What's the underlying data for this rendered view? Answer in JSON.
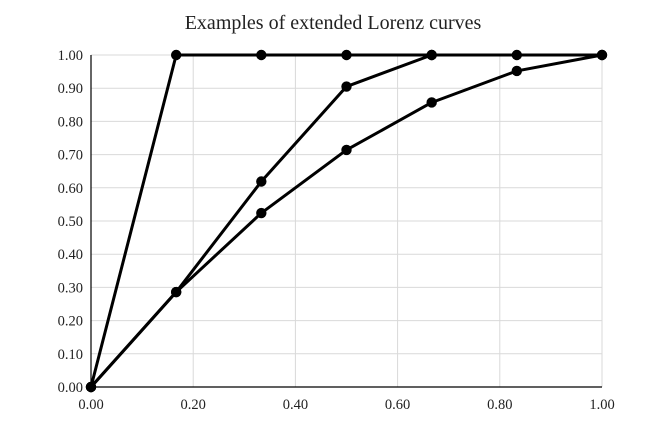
{
  "chart_data": {
    "type": "scatter",
    "title": "Examples of extended Lorenz curves",
    "xlabel": "",
    "ylabel": "",
    "xlim": [
      0,
      1
    ],
    "ylim": [
      0,
      1
    ],
    "grid": true,
    "legend": "none",
    "line_color": "#000000",
    "grid_color": "#d9d9d9",
    "x_ticks": [
      "0.00",
      "0.20",
      "0.40",
      "0.60",
      "0.80",
      "1.00"
    ],
    "y_ticks": [
      "0.00",
      "0.10",
      "0.20",
      "0.30",
      "0.40",
      "0.50",
      "0.60",
      "0.70",
      "0.80",
      "0.90",
      "1.00"
    ],
    "series": [
      {
        "x": [
          0,
          0.1667,
          0.3333,
          0.5,
          0.6667,
          0.8333,
          1.0
        ],
        "y": [
          0,
          1.0,
          1.0,
          1.0,
          1.0,
          1.0,
          1.0
        ]
      },
      {
        "x": [
          0,
          0.1667,
          0.3333,
          0.5,
          0.6667
        ],
        "y": [
          0,
          0.286,
          0.619,
          0.905,
          1.0
        ]
      },
      {
        "x": [
          0,
          0.1667,
          0.3333,
          0.5,
          0.6667,
          0.8333,
          1.0
        ],
        "y": [
          0,
          0.286,
          0.524,
          0.714,
          0.857,
          0.952,
          1.0
        ]
      }
    ]
  }
}
